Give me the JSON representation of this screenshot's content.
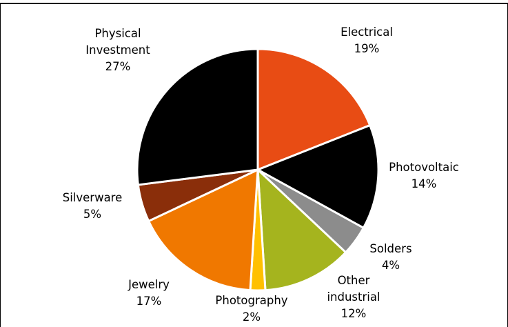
{
  "chart_data": {
    "type": "pie",
    "title": "",
    "slices": [
      {
        "label": "Electrical",
        "value": 19,
        "display": "19%",
        "color": "#E84C14"
      },
      {
        "label": "Photovoltaic",
        "value": 14,
        "display": "14%",
        "color": "#000000"
      },
      {
        "label": "Solders",
        "value": 4,
        "display": "4%",
        "color": "#8C8C8C"
      },
      {
        "label": "Other industrial",
        "value": 12,
        "display": "12%",
        "color": "#A5B41E"
      },
      {
        "label": "Photography",
        "value": 2,
        "display": "2%",
        "color": "#FFC000"
      },
      {
        "label": "Jewelry",
        "value": 17,
        "display": "17%",
        "color": "#F07800"
      },
      {
        "label": "Silverware",
        "value": 5,
        "display": "5%",
        "color": "#8A2E0A"
      },
      {
        "label": "Physical Investment",
        "value": 27,
        "display": "27%",
        "color": "#000000"
      }
    ],
    "legend": "none",
    "start_angle": "12 o'clock, clockwise",
    "slice_border_color": "#FFFFFF"
  }
}
